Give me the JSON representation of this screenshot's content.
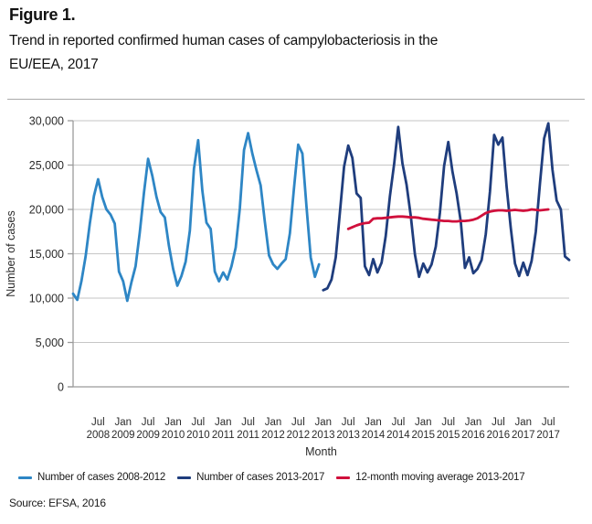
{
  "figure": {
    "label": "Figure 1.",
    "title_line1": "Trend in reported confirmed human cases of campylobacteriosis in the",
    "title_line2": "EU/EEA, 2017",
    "source": "Source: EFSA, 2016"
  },
  "chart_data": {
    "type": "line",
    "xlabel": "Month",
    "ylabel": "Number of cases",
    "ylim": [
      0,
      30000
    ],
    "ytick_step": 5000,
    "ytick_labels": [
      "0",
      "5,000",
      "10,000",
      "15,000",
      "20,000",
      "25,000",
      "30,000"
    ],
    "grid": "horizontal",
    "legend_position": "bottom",
    "months_total": 120,
    "x_start": "Jan 2008",
    "x_end": "Dec 2017",
    "xticks": [
      {
        "label_top": "Jul",
        "label_bottom": "2008",
        "month_index": 6
      },
      {
        "label_top": "Jan",
        "label_bottom": "2009",
        "month_index": 12
      },
      {
        "label_top": "Jul",
        "label_bottom": "2009",
        "month_index": 18
      },
      {
        "label_top": "Jan",
        "label_bottom": "2010",
        "month_index": 24
      },
      {
        "label_top": "Jul",
        "label_bottom": "2010",
        "month_index": 30
      },
      {
        "label_top": "Jan",
        "label_bottom": "2011",
        "month_index": 36
      },
      {
        "label_top": "Jul",
        "label_bottom": "2011",
        "month_index": 42
      },
      {
        "label_top": "Jan",
        "label_bottom": "2012",
        "month_index": 48
      },
      {
        "label_top": "Jul",
        "label_bottom": "2012",
        "month_index": 54
      },
      {
        "label_top": "Jan",
        "label_bottom": "2013",
        "month_index": 60
      },
      {
        "label_top": "Jul",
        "label_bottom": "2013",
        "month_index": 66
      },
      {
        "label_top": "Jan",
        "label_bottom": "2014",
        "month_index": 72
      },
      {
        "label_top": "Jul",
        "label_bottom": "2014",
        "month_index": 78
      },
      {
        "label_top": "Jan",
        "label_bottom": "2015",
        "month_index": 84
      },
      {
        "label_top": "Jul",
        "label_bottom": "2015",
        "month_index": 90
      },
      {
        "label_top": "Jan",
        "label_bottom": "2016",
        "month_index": 96
      },
      {
        "label_top": "Jul",
        "label_bottom": "2016",
        "month_index": 102
      },
      {
        "label_top": "Jan",
        "label_bottom": "2017",
        "month_index": 108
      },
      {
        "label_top": "Jul",
        "label_bottom": "2017",
        "month_index": 114
      }
    ],
    "series": [
      {
        "name": "Number of cases 2008-2012",
        "color": "#2E86C5",
        "start_index": 0,
        "values": [
          10500,
          9800,
          11900,
          14700,
          18400,
          21500,
          23400,
          21400,
          20000,
          19400,
          18400,
          13000,
          11900,
          9700,
          11800,
          13600,
          17400,
          21900,
          25700,
          23800,
          21400,
          19700,
          19100,
          15900,
          13300,
          11400,
          12500,
          14100,
          17600,
          24600,
          27800,
          22100,
          18500,
          17800,
          13000,
          11900,
          12900,
          12100,
          13600,
          15700,
          20100,
          26700,
          28600,
          26300,
          24400,
          22700,
          18600,
          14800,
          13800,
          13300,
          13900,
          14400,
          17300,
          22400,
          27300,
          26300,
          20300,
          14600,
          12400,
          13800
        ]
      },
      {
        "name": "Number of cases 2013-2017",
        "color": "#1F3D7D",
        "start_index": 60,
        "values": [
          10900,
          11100,
          12100,
          14600,
          19600,
          24800,
          27200,
          25800,
          21800,
          21300,
          13600,
          12600,
          14400,
          12900,
          14000,
          17000,
          21500,
          25100,
          29300,
          25200,
          22800,
          19300,
          14900,
          12400,
          13900,
          12900,
          13800,
          15800,
          19600,
          24900,
          27600,
          24300,
          21800,
          18600,
          13400,
          14600,
          12800,
          13300,
          14300,
          17200,
          22000,
          28400,
          27300,
          28100,
          22500,
          17900,
          13900,
          12500,
          14000,
          12600,
          14200,
          17500,
          23000,
          28000,
          29700,
          24500,
          21000,
          20000,
          14700,
          14300
        ]
      },
      {
        "name": "12-month moving average 2013-2017",
        "color": "#D0103C",
        "start_index": 66,
        "values": [
          17800,
          18000,
          18200,
          18350,
          18450,
          18500,
          18950,
          19000,
          19000,
          19050,
          19100,
          19150,
          19200,
          19200,
          19150,
          19100,
          19100,
          19050,
          18950,
          18900,
          18850,
          18800,
          18750,
          18700,
          18700,
          18650,
          18650,
          18700,
          18700,
          18750,
          18850,
          19000,
          19300,
          19600,
          19750,
          19850,
          19900,
          19900,
          19850,
          19900,
          19950,
          19900,
          19850,
          19900,
          20000,
          19950,
          19900,
          19950,
          20000
        ]
      }
    ]
  }
}
